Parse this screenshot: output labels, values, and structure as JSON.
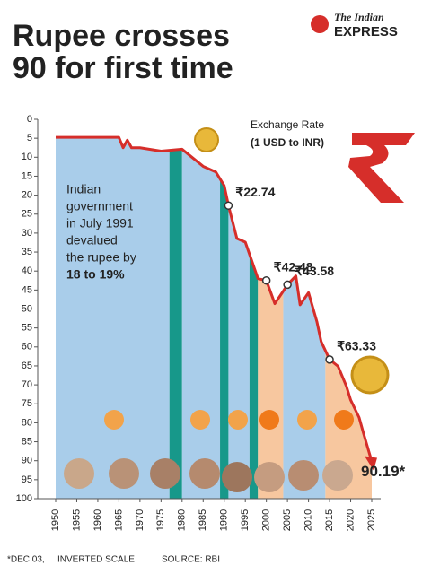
{
  "header": {
    "title_lines": [
      "Rupee crosses",
      "90 for first time"
    ],
    "logo_lines": [
      "The Indian",
      "EXPRESS"
    ]
  },
  "chart_data": {
    "type": "line",
    "legend_lines": [
      "Exchange Rate",
      "(1 USD to INR)"
    ],
    "note_lines": [
      "Indian",
      "government",
      "in July 1991",
      "devalued",
      "the rupee by"
    ],
    "note_highlight": "18 to 19%",
    "x": [
      1950,
      1955,
      1960,
      1965,
      1966,
      1967,
      1968,
      1970,
      1975,
      1980,
      1985,
      1988,
      1990,
      1991,
      1993,
      1995,
      1998,
      2000,
      2002,
      2004,
      2005,
      2007,
      2008,
      2010,
      2012,
      2013,
      2015,
      2017,
      2019,
      2020,
      2022,
      2023,
      2025
    ],
    "series": [
      {
        "name": "Exchange Rate",
        "color": "#d62e2a",
        "values": [
          4.76,
          4.76,
          4.76,
          4.76,
          7.5,
          5.5,
          7.5,
          7.5,
          8.4,
          7.9,
          12.4,
          13.9,
          17.5,
          22.74,
          31.4,
          32.4,
          42,
          42.48,
          48.6,
          45.3,
          43.58,
          41.3,
          48.9,
          45.7,
          53.4,
          58.6,
          63.33,
          65.1,
          70.4,
          74,
          78.6,
          82.6,
          90.19
        ]
      }
    ],
    "annotations": [
      {
        "x": 1991,
        "value": 22.74,
        "label": "₹22.74"
      },
      {
        "x": 2000,
        "value": 42.48,
        "label": "₹42.48"
      },
      {
        "x": 2005,
        "value": 43.58,
        "label": "₹43.58"
      },
      {
        "x": 2015,
        "value": 63.33,
        "label": "₹63.33"
      },
      {
        "x": 2025,
        "value": 90.19,
        "label": "90.19*"
      }
    ],
    "periods": [
      {
        "start": 1950,
        "end": 1977,
        "color": "#a9cdea"
      },
      {
        "start": 1977,
        "end": 1980,
        "color": "#17988a"
      },
      {
        "start": 1980,
        "end": 1989,
        "color": "#a9cdea"
      },
      {
        "start": 1989,
        "end": 1991,
        "color": "#17988a"
      },
      {
        "start": 1991,
        "end": 1996,
        "color": "#a9cdea"
      },
      {
        "start": 1996,
        "end": 1998,
        "color": "#17988a"
      },
      {
        "start": 1998,
        "end": 2004,
        "color": "#f7c79f"
      },
      {
        "start": 2004,
        "end": 2014,
        "color": "#a9cdea"
      },
      {
        "start": 2014,
        "end": 2025,
        "color": "#f7c79f"
      }
    ],
    "xlim": [
      1950,
      2025
    ],
    "ylim": [
      0,
      100
    ],
    "inverted": true,
    "xticks": [
      1950,
      1955,
      1960,
      1965,
      1970,
      1975,
      1980,
      1985,
      1990,
      1995,
      2000,
      2005,
      2010,
      2015,
      2020,
      2025
    ],
    "yticks": [
      0,
      5,
      10,
      15,
      20,
      25,
      30,
      35,
      40,
      45,
      50,
      55,
      60,
      65,
      70,
      75,
      80,
      85,
      90,
      95,
      100
    ],
    "footer": [
      "*DEC 03,",
      "INVERTED SCALE",
      "SOURCE: RBI"
    ]
  }
}
